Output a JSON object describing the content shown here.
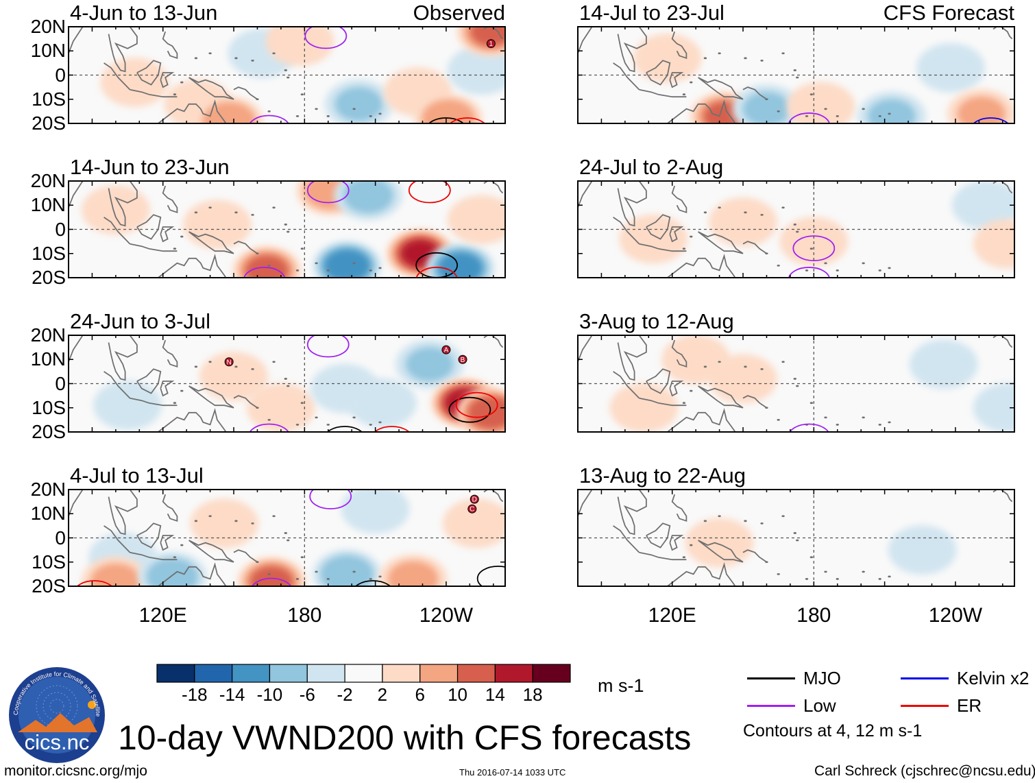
{
  "chart_data": {
    "type": "heatmap",
    "title": "10-day VWND200 with CFS forecasts",
    "variable": "VWND200",
    "units": "m s-1",
    "x_axis": {
      "range_deg_east": [
        80,
        265
      ],
      "ticks": [
        {
          "label": "120E",
          "lon": 120
        },
        {
          "label": "180",
          "lon": 180
        },
        {
          "label": "120W",
          "lon": 240
        }
      ]
    },
    "y_axis": {
      "range_deg_north": [
        -20,
        20
      ],
      "ticks": [
        {
          "label": "20N",
          "lat": 20
        },
        {
          "label": "10N",
          "lat": 10
        },
        {
          "label": "0",
          "lat": 0
        },
        {
          "label": "10S",
          "lat": -10
        },
        {
          "label": "20S",
          "lat": -20
        }
      ]
    },
    "colorbar": {
      "labels": [
        "-18",
        "-14",
        "-10",
        "-6",
        "-2",
        "2",
        "6",
        "10",
        "14",
        "18"
      ],
      "colors": [
        "#08306b",
        "#2166ac",
        "#4393c3",
        "#92c5de",
        "#d1e5f0",
        "#f9f9f9",
        "#fddbc7",
        "#f4a582",
        "#d6604d",
        "#b2182b",
        "#67001f"
      ]
    },
    "panels": [
      {
        "column": "left",
        "row": 0,
        "period": "4-Jun to 13-Jun",
        "tag": "Observed",
        "anomalies": [
          {
            "lon": 108,
            "lat": -3,
            "value": 3
          },
          {
            "lon": 135,
            "lat": -12,
            "value": 4
          },
          {
            "lon": 148,
            "lat": -19,
            "value": 9
          },
          {
            "lon": 162,
            "lat": 9,
            "value": -4
          },
          {
            "lon": 178,
            "lat": 14,
            "value": 5
          },
          {
            "lon": 203,
            "lat": -12,
            "value": -6
          },
          {
            "lon": 228,
            "lat": -7,
            "value": 5
          },
          {
            "lon": 241,
            "lat": -18,
            "value": 9
          },
          {
            "lon": 255,
            "lat": 2,
            "value": -5
          },
          {
            "lon": 259,
            "lat": 18,
            "value": 10
          }
        ],
        "contours": [
          {
            "type": "Low",
            "lon": 189,
            "lat": 19
          },
          {
            "type": "Low",
            "lon": 165,
            "lat": -19
          },
          {
            "type": "MJO",
            "lon": 240,
            "lat": -20
          },
          {
            "type": "ER",
            "lon": 249,
            "lat": -20
          }
        ],
        "storms": [
          "1"
        ]
      },
      {
        "column": "left",
        "row": 1,
        "period": "14-Jun to 23-Jun",
        "tag": "",
        "anomalies": [
          {
            "lon": 100,
            "lat": 8,
            "value": 3
          },
          {
            "lon": 143,
            "lat": 2,
            "value": 5
          },
          {
            "lon": 164,
            "lat": -17,
            "value": 11
          },
          {
            "lon": 191,
            "lat": 16,
            "value": 9
          },
          {
            "lon": 198,
            "lat": -15,
            "value": -13
          },
          {
            "lon": 207,
            "lat": 14,
            "value": -7
          },
          {
            "lon": 229,
            "lat": -10,
            "value": 14
          },
          {
            "lon": 246,
            "lat": -16,
            "value": -12
          },
          {
            "lon": 255,
            "lat": 4,
            "value": 4
          }
        ],
        "contours": [
          {
            "type": "Low",
            "lon": 190,
            "lat": 19
          },
          {
            "type": "ER",
            "lon": 233,
            "lat": 19
          },
          {
            "type": "Low",
            "lon": 163,
            "lat": -18
          },
          {
            "type": "MJO",
            "lon": 236,
            "lat": -12
          },
          {
            "type": "ER",
            "lon": 236,
            "lat": -18
          }
        ],
        "storms": []
      },
      {
        "column": "left",
        "row": 2,
        "period": "24-Jun to 3-Jul",
        "tag": "",
        "anomalies": [
          {
            "lon": 105,
            "lat": -9,
            "value": -5
          },
          {
            "lon": 150,
            "lat": 3,
            "value": 5
          },
          {
            "lon": 170,
            "lat": -10,
            "value": 4
          },
          {
            "lon": 197,
            "lat": -2,
            "value": -4
          },
          {
            "lon": 213,
            "lat": -8,
            "value": -5
          },
          {
            "lon": 233,
            "lat": 8,
            "value": -6
          },
          {
            "lon": 248,
            "lat": -8,
            "value": 15
          },
          {
            "lon": 259,
            "lat": -12,
            "value": 13
          }
        ],
        "contours": [
          {
            "type": "Low",
            "lon": 190,
            "lat": 19
          },
          {
            "type": "Low",
            "lon": 165,
            "lat": -19
          },
          {
            "type": "MJO",
            "lon": 250,
            "lat": -8
          },
          {
            "type": "ER",
            "lon": 253,
            "lat": -6
          },
          {
            "type": "MJO",
            "lon": 197,
            "lat": -20
          },
          {
            "type": "ER",
            "lon": 217,
            "lat": -20
          }
        ],
        "storms": [
          "N",
          "A",
          "B"
        ]
      },
      {
        "column": "left",
        "row": 3,
        "period": "4-Jul to 13-Jul",
        "tag": "",
        "anomalies": [
          {
            "lon": 103,
            "lat": -8,
            "value": -5
          },
          {
            "lon": 100,
            "lat": -18,
            "value": 7
          },
          {
            "lon": 124,
            "lat": -16,
            "value": -8
          },
          {
            "lon": 146,
            "lat": 6,
            "value": 4
          },
          {
            "lon": 166,
            "lat": -18,
            "value": 11
          },
          {
            "lon": 198,
            "lat": -15,
            "value": -9
          },
          {
            "lon": 210,
            "lat": 12,
            "value": -4
          },
          {
            "lon": 226,
            "lat": -17,
            "value": 7
          },
          {
            "lon": 253,
            "lat": 6,
            "value": 4
          }
        ],
        "contours": [
          {
            "type": "ER",
            "lon": 91,
            "lat": -20
          },
          {
            "type": "Low",
            "lon": 166,
            "lat": -19
          },
          {
            "type": "Low",
            "lon": 191,
            "lat": 20
          },
          {
            "type": "MJO",
            "lon": 209,
            "lat": -20
          },
          {
            "type": "MJO",
            "lon": 262,
            "lat": -14
          }
        ],
        "storms": [
          "C",
          "D"
        ]
      },
      {
        "column": "right",
        "row": 0,
        "period": "14-Jul to 23-Jul",
        "tag": "CFS Forecast",
        "anomalies": [
          {
            "lon": 118,
            "lat": 7,
            "value": 5
          },
          {
            "lon": 142,
            "lat": -17,
            "value": 10
          },
          {
            "lon": 160,
            "lat": -14,
            "value": -6
          },
          {
            "lon": 183,
            "lat": -13,
            "value": 4
          },
          {
            "lon": 213,
            "lat": -17,
            "value": -6
          },
          {
            "lon": 238,
            "lat": 3,
            "value": -5
          },
          {
            "lon": 251,
            "lat": -16,
            "value": 6
          }
        ],
        "contours": [
          {
            "type": "Low",
            "lon": 178,
            "lat": -18
          },
          {
            "type": "Kelvin x2",
            "lon": 255,
            "lat": -20
          }
        ],
        "storms": []
      },
      {
        "column": "right",
        "row": 1,
        "period": "24-Jul to 2-Aug",
        "tag": "",
        "anomalies": [
          {
            "lon": 112,
            "lat": -4,
            "value": 4
          },
          {
            "lon": 150,
            "lat": 3,
            "value": 3
          },
          {
            "lon": 180,
            "lat": -5,
            "value": 4
          },
          {
            "lon": 253,
            "lat": 10,
            "value": -2
          },
          {
            "lon": 262,
            "lat": -6,
            "value": 3
          }
        ],
        "contours": [
          {
            "type": "Low",
            "lon": 180,
            "lat": -5
          },
          {
            "type": "Low",
            "lon": 178,
            "lat": -18
          }
        ],
        "storms": []
      },
      {
        "column": "right",
        "row": 2,
        "period": "3-Aug to 12-Aug",
        "tag": "",
        "anomalies": [
          {
            "lon": 108,
            "lat": -10,
            "value": 3
          },
          {
            "lon": 130,
            "lat": 10,
            "value": 3
          },
          {
            "lon": 150,
            "lat": 2,
            "value": 2
          },
          {
            "lon": 235,
            "lat": 8,
            "value": -2
          },
          {
            "lon": 262,
            "lat": -10,
            "value": -2
          }
        ],
        "contours": [
          {
            "type": "Low",
            "lon": 178,
            "lat": -19
          }
        ],
        "storms": []
      },
      {
        "column": "right",
        "row": 3,
        "period": "13-Aug to 22-Aug",
        "tag": "",
        "anomalies": [
          {
            "lon": 140,
            "lat": -2,
            "value": 3
          },
          {
            "lon": 226,
            "lat": -5,
            "value": -3
          }
        ],
        "contours": [],
        "storms": []
      }
    ]
  },
  "legend": {
    "items": [
      {
        "label": "MJO",
        "color": "#000000"
      },
      {
        "label": "Kelvin x2",
        "color": "#0000ee"
      },
      {
        "label": "Low",
        "color": "#a020f0"
      },
      {
        "label": "ER",
        "color": "#ee0000"
      }
    ],
    "note": "Contours at 4, 12 m s-1"
  },
  "footer": {
    "url": "monitor.cicsnc.org/mjo",
    "timestamp": "Thu 2016-07-14 1033 UTC",
    "author": "Carl Schreck (cjschrec@ncsu.edu)",
    "logo_text": "cics.nc",
    "logo_ring_text": "Cooperative Institute for Climate and Satellites"
  }
}
